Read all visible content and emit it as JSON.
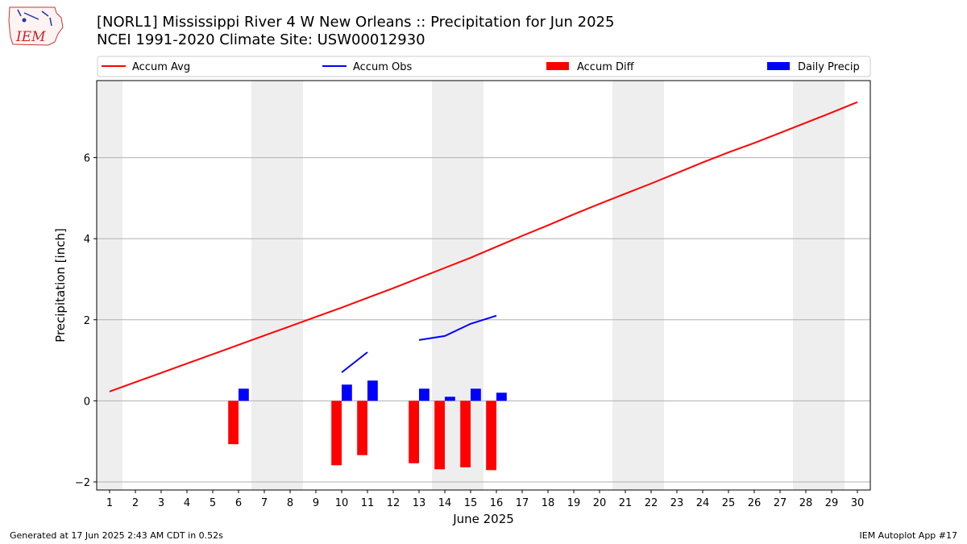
{
  "logo": {
    "text": "IEM"
  },
  "title": {
    "line1": "[NORL1] Mississippi River 4 W New Orleans :: Precipitation for Jun 2025",
    "line2": "NCEI 1991-2020 Climate Site: USW00012930"
  },
  "footer": {
    "left": "Generated at 17 Jun 2025 2:43 AM CDT in 0.52s",
    "right": "IEM Autoplot App #17"
  },
  "chart_data": {
    "type": "bar",
    "xlabel": "June 2025",
    "ylabel": "Precipitation [inch]",
    "x": [
      1,
      2,
      3,
      4,
      5,
      6,
      7,
      8,
      9,
      10,
      11,
      12,
      13,
      14,
      15,
      16,
      17,
      18,
      19,
      20,
      21,
      22,
      23,
      24,
      25,
      26,
      27,
      28,
      29,
      30
    ],
    "xlim": [
      0.5,
      30.5
    ],
    "ylim": [
      -2.2,
      7.9
    ],
    "yticks": [
      -2,
      0,
      2,
      4,
      6
    ],
    "grid": "horizontal",
    "legend_position": "top",
    "weekend_days": [
      1,
      7,
      8,
      14,
      15,
      21,
      22,
      28,
      29
    ],
    "series": [
      {
        "name": "Accum Avg",
        "kind": "line",
        "color": "#ff0000",
        "x": [
          1,
          2,
          3,
          4,
          5,
          6,
          7,
          8,
          9,
          10,
          11,
          12,
          13,
          14,
          15,
          16,
          17,
          18,
          19,
          20,
          21,
          22,
          23,
          24,
          25,
          26,
          27,
          28,
          29,
          30
        ],
        "values": [
          0.23,
          0.46,
          0.69,
          0.92,
          1.15,
          1.38,
          1.61,
          1.84,
          2.07,
          2.3,
          2.54,
          2.78,
          3.03,
          3.28,
          3.53,
          3.8,
          4.07,
          4.33,
          4.6,
          4.86,
          5.11,
          5.36,
          5.62,
          5.88,
          6.13,
          6.36,
          6.61,
          6.86,
          7.11,
          7.37
        ]
      },
      {
        "name": "Accum Obs",
        "kind": "line",
        "color": "#0000ff",
        "segments": [
          {
            "x": [
              10,
              11
            ],
            "values": [
              0.7,
              1.2
            ]
          },
          {
            "x": [
              13,
              14,
              15,
              16
            ],
            "values": [
              1.5,
              1.6,
              1.9,
              2.1
            ]
          }
        ]
      },
      {
        "name": "Accum Diff",
        "kind": "bar",
        "color": "#ff0000",
        "x": [
          6,
          10,
          11,
          13,
          14,
          15,
          16
        ],
        "values": [
          -1.07,
          -1.59,
          -1.34,
          -1.54,
          -1.69,
          -1.64,
          -1.71
        ]
      },
      {
        "name": "Daily Precip",
        "kind": "bar",
        "color": "#0000ff",
        "x": [
          6,
          10,
          11,
          13,
          14,
          15,
          16
        ],
        "values": [
          0.3,
          0.4,
          0.5,
          0.3,
          0.1,
          0.3,
          0.2
        ]
      }
    ]
  }
}
